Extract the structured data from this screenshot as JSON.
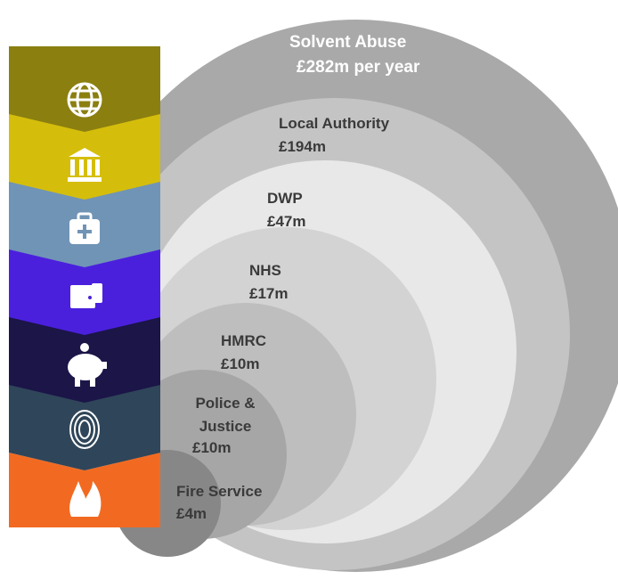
{
  "header": {
    "title": "Solvent Abuse",
    "subtitle": "£282m per year"
  },
  "layers": [
    {
      "name": "Local Authority",
      "amount": "£194m"
    },
    {
      "name": "DWP",
      "amount": "£47m"
    },
    {
      "name": "NHS",
      "amount": "£17m"
    },
    {
      "name": "HMRC",
      "amount": "£10m"
    },
    {
      "name": "Police & Justice",
      "amount": "£10m"
    },
    {
      "name": "Fire Service",
      "amount": "£4m"
    }
  ]
}
